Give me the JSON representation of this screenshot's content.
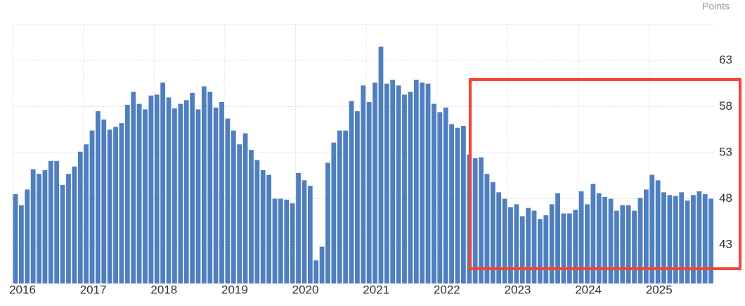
{
  "chart_data": {
    "type": "bar",
    "y_label": "Points",
    "color": "#4f7fbf",
    "grid": true,
    "ylim": [
      38.8,
      66.9
    ],
    "yticks": [
      43,
      48,
      53,
      58,
      63
    ],
    "categories": [
      "2016",
      null,
      null,
      null,
      null,
      null,
      null,
      null,
      null,
      null,
      null,
      null,
      "2017",
      null,
      null,
      null,
      null,
      null,
      null,
      null,
      null,
      null,
      null,
      null,
      "2018",
      null,
      null,
      null,
      null,
      null,
      null,
      null,
      null,
      null,
      null,
      null,
      "2019",
      null,
      null,
      null,
      null,
      null,
      null,
      null,
      null,
      null,
      null,
      null,
      "2020",
      null,
      null,
      null,
      null,
      null,
      null,
      null,
      null,
      null,
      null,
      null,
      "2021",
      null,
      null,
      null,
      null,
      null,
      null,
      null,
      null,
      null,
      null,
      null,
      "2022",
      null,
      null,
      null,
      null,
      null,
      null,
      null,
      null,
      null,
      null,
      null,
      "2023",
      null,
      null,
      null,
      null,
      null,
      null,
      null,
      null,
      null,
      null,
      null,
      "2024",
      null,
      null,
      null,
      null,
      null,
      null,
      null,
      null,
      null,
      null,
      null,
      "2025",
      null,
      null,
      null,
      null,
      null,
      null,
      null,
      null,
      null,
      null
    ],
    "values": [
      48.5,
      47.3,
      49.0,
      51.2,
      50.7,
      51.1,
      52.1,
      52.1,
      49.5,
      50.7,
      51.5,
      53.1,
      53.9,
      55.4,
      57.5,
      56.6,
      55.5,
      55.8,
      56.2,
      58.2,
      59.6,
      58.3,
      57.7,
      59.2,
      59.3,
      60.6,
      59.0,
      57.8,
      58.3,
      58.7,
      59.5,
      57.7,
      60.2,
      59.6,
      57.9,
      58.5,
      56.7,
      55.4,
      53.9,
      55.1,
      53.3,
      52.2,
      51.1,
      50.6,
      48.0,
      48.0,
      47.9,
      47.5,
      50.8,
      50.0,
      49.4,
      41.3,
      42.8,
      51.9,
      54.1,
      55.4,
      55.4,
      58.6,
      57.5,
      60.3,
      58.5,
      60.6,
      64.5,
      60.5,
      60.9,
      60.3,
      59.3,
      59.6,
      60.9,
      60.6,
      60.5,
      58.3,
      57.4,
      57.9,
      56.1,
      55.7,
      55.9,
      52.8,
      52.4,
      52.5,
      50.7,
      49.8,
      48.7,
      48.0,
      47.1,
      47.4,
      46.1,
      47.0,
      46.7,
      45.8,
      46.2,
      47.4,
      48.6,
      46.4,
      46.4,
      46.8,
      48.8,
      47.4,
      49.6,
      48.6,
      48.2,
      48.0,
      46.7,
      47.3,
      47.3,
      46.7,
      48.1,
      49.0,
      50.6,
      50.0,
      48.7,
      48.4,
      48.3,
      48.7,
      47.8,
      48.4,
      48.8,
      48.5,
      48.0
    ]
  }
}
